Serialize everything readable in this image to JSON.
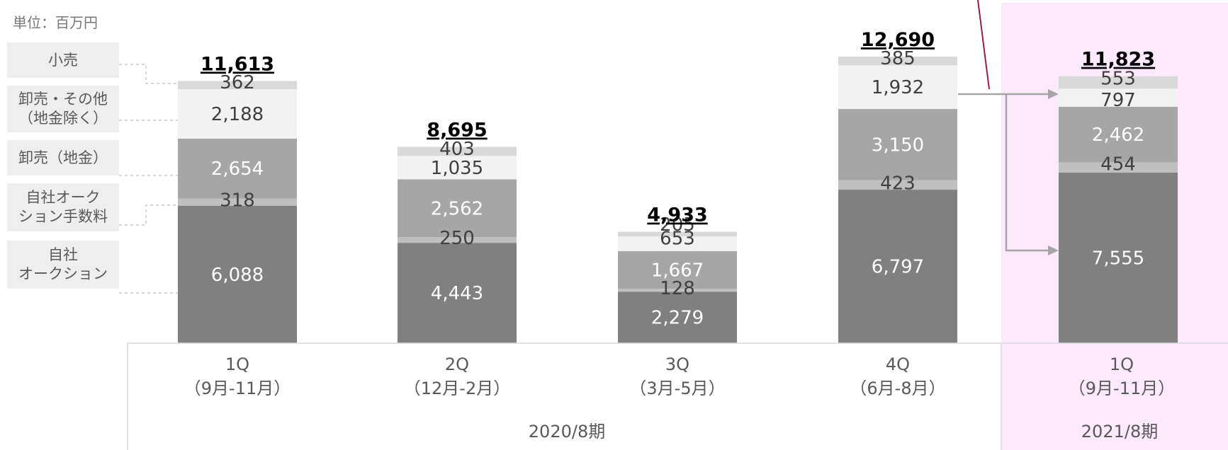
{
  "unit_label": "単位：百万円",
  "legend": [
    {
      "label": "小売"
    },
    {
      "label": "卸売・その他\n（地金除く）"
    },
    {
      "label": "卸売（地金）"
    },
    {
      "label": "自社オーク\nション手数料"
    },
    {
      "label": "自社\nオークション"
    }
  ],
  "periods": [
    {
      "label": "2020/8期"
    },
    {
      "label": "2021/8期"
    }
  ],
  "colors": {
    "auction": "#808080",
    "auction_fee": "#bfbfbf",
    "wholesale_bullion": "#a6a6a6",
    "wholesale_other": "#f2f2f2",
    "retail": "#d9d9d9",
    "highlight_bg": "#fce9fc",
    "highlight_line": "#9e1a4f",
    "arrow": "#a6a6a6"
  },
  "chart_data": {
    "type": "bar",
    "stacked": true,
    "categories": [
      "1Q\n（9月-11月）",
      "2Q\n（12月-2月）",
      "3Q\n（3月-5月）",
      "4Q\n（6月-8月）",
      "1Q\n（9月-11月）"
    ],
    "series": [
      {
        "name": "自社\nオークション",
        "values": [
          6088,
          4443,
          2279,
          6797,
          7555
        ]
      },
      {
        "name": "自社オーク\nション手数料",
        "values": [
          318,
          250,
          128,
          423,
          454
        ]
      },
      {
        "name": "卸売（地金）",
        "values": [
          2654,
          2562,
          1667,
          3150,
          2462
        ]
      },
      {
        "name": "卸売・その他\n（地金除く）",
        "values": [
          2188,
          1035,
          653,
          1932,
          797
        ]
      },
      {
        "name": "小売",
        "values": [
          362,
          403,
          205,
          385,
          553
        ]
      }
    ],
    "totals": [
      "11,613",
      "8,695",
      "4,933",
      "12,690",
      "11,823"
    ],
    "ylim": [
      0,
      12690
    ],
    "grid": false,
    "legend_position": "left"
  }
}
